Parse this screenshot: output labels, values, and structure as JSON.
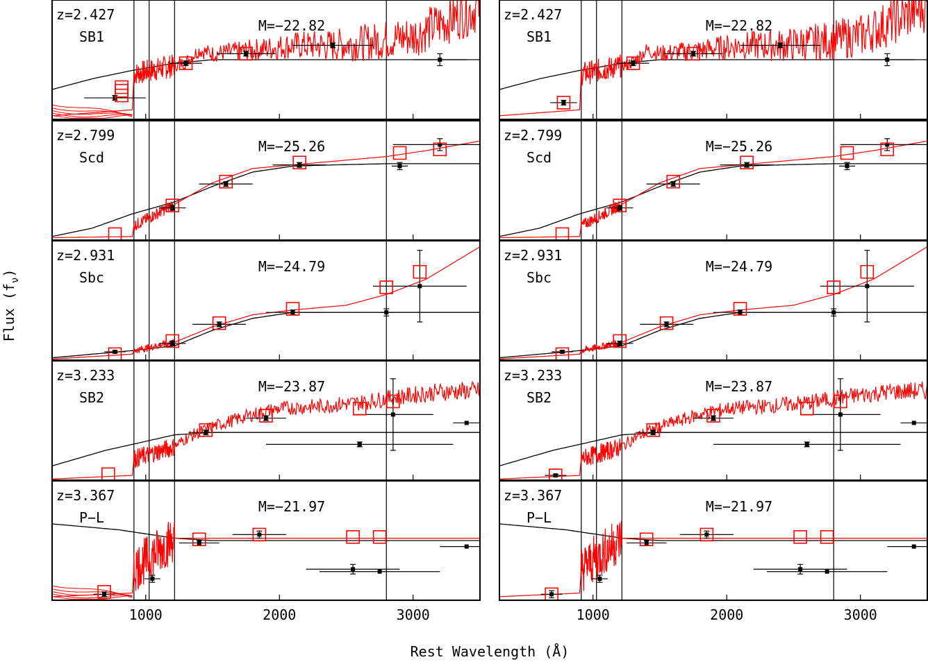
{
  "figure": {
    "xlabel": "Rest Wavelength (Å)",
    "ylabel": "Flux (f_ν)",
    "colors": {
      "model": "#ff0000",
      "continuum": "#000000",
      "axes": "#000000"
    }
  },
  "chart_data": {
    "type": "line",
    "xlim": [
      300,
      3500
    ],
    "xticks": [
      1000,
      2000,
      3000
    ],
    "xtick_labels": [
      "1000",
      "2000",
      "3000"
    ],
    "vlines": [
      912,
      1026,
      1216,
      2800
    ],
    "grid": false,
    "legend": "none",
    "columns": 2,
    "panels": [
      {
        "z": "z=2.427",
        "type": "SB1",
        "mag": "M=−22.82",
        "ylim": [
          0,
          1
        ],
        "continuum": [
          [
            300,
            0.25
          ],
          [
            600,
            0.34
          ],
          [
            900,
            0.41
          ],
          [
            1216,
            0.47
          ],
          [
            1500,
            0.5
          ]
        ],
        "cont_flat": 0.5,
        "model": [
          [
            300,
            0.03
          ],
          [
            900,
            0.08
          ],
          [
            912,
            0.38
          ],
          [
            1216,
            0.45
          ],
          [
            1300,
            0.48
          ],
          [
            1400,
            0.58
          ],
          [
            1500,
            0.55
          ],
          [
            1800,
            0.58
          ],
          [
            2100,
            0.62
          ],
          [
            2400,
            0.62
          ],
          [
            2700,
            0.65
          ],
          [
            3000,
            0.7
          ],
          [
            3200,
            0.8
          ],
          [
            3400,
            0.9
          ],
          [
            3500,
            0.95
          ]
        ],
        "noise": {
          "from": 1216,
          "to": 3500,
          "amp": 0.05,
          "amp_end": 0.22
        },
        "lyman_noise": 0.1,
        "phot": [
          {
            "x": 1300,
            "y": 0.47,
            "xe": 120,
            "ye": 0.02
          },
          {
            "x": 1750,
            "y": 0.55,
            "xe": 220,
            "ye": 0.02
          },
          {
            "x": 2400,
            "y": 0.62,
            "xe": 300,
            "ye": 0.02
          },
          {
            "x": 3200,
            "y": 0.5,
            "xe": 200,
            "ye": 0.05
          }
        ],
        "left_only": [
          {
            "x": 770,
            "y": 0.18,
            "xe": 230,
            "ye": 0.02
          }
        ],
        "right_only": [
          {
            "x": 780,
            "y": 0.14,
            "xe": 100,
            "ye": 0.02
          }
        ],
        "boxes": [
          [
            1300,
            0.47
          ],
          [
            1750,
            0.55
          ]
        ],
        "left_boxes": [
          [
            820,
            0.2
          ],
          [
            820,
            0.24
          ],
          [
            820,
            0.27
          ]
        ],
        "right_boxes": [
          [
            780,
            0.14
          ]
        ],
        "left_tracks": true
      },
      {
        "z": "z=2.799",
        "type": "Scd",
        "mag": "M=−25.26",
        "ylim": [
          0,
          1
        ],
        "continuum": [
          [
            300,
            0.03
          ],
          [
            600,
            0.1
          ],
          [
            900,
            0.22
          ],
          [
            1216,
            0.32
          ],
          [
            1500,
            0.45
          ],
          [
            1800,
            0.57
          ],
          [
            2100,
            0.62
          ],
          [
            2400,
            0.63
          ],
          [
            2800,
            0.64
          ],
          [
            3500,
            0.64
          ]
        ],
        "cont_flat": 0,
        "model": [
          [
            300,
            0.02
          ],
          [
            900,
            0.03
          ],
          [
            912,
            0.12
          ],
          [
            1216,
            0.3
          ],
          [
            1500,
            0.48
          ],
          [
            1800,
            0.6
          ],
          [
            2100,
            0.63
          ],
          [
            2400,
            0.66
          ],
          [
            2800,
            0.7
          ],
          [
            3100,
            0.75
          ],
          [
            3500,
            0.83
          ]
        ],
        "noise": {
          "from": 912,
          "to": 1216,
          "amp": 0.05,
          "amp_end": 0.05
        },
        "lyman_noise": 0,
        "phot": [
          {
            "x": 1200,
            "y": 0.27,
            "xe": 100,
            "ye": 0.02
          },
          {
            "x": 1600,
            "y": 0.47,
            "xe": 200,
            "ye": 0.02
          },
          {
            "x": 2150,
            "y": 0.63,
            "xe": 200,
            "ye": 0.02
          },
          {
            "x": 2900,
            "y": 0.62,
            "xe": 60,
            "ye": 0.03
          },
          {
            "x": 3200,
            "y": 0.8,
            "xe": 350,
            "ye": 0.05
          }
        ],
        "left_only": [],
        "right_only": [],
        "boxes": [
          [
            1200,
            0.29
          ],
          [
            1600,
            0.49
          ],
          [
            2150,
            0.65
          ],
          [
            2900,
            0.73
          ],
          [
            3200,
            0.76
          ],
          [
            770,
            0.05
          ]
        ],
        "left_boxes": [],
        "right_boxes": [],
        "left_tracks": false
      },
      {
        "z": "z=2.931",
        "type": "Sbc",
        "mag": "M=−24.79",
        "ylim": [
          0,
          1
        ],
        "continuum": [
          [
            300,
            0.02
          ],
          [
            700,
            0.06
          ],
          [
            900,
            0.08
          ],
          [
            1216,
            0.12
          ],
          [
            1500,
            0.25
          ],
          [
            1800,
            0.35
          ],
          [
            2100,
            0.4
          ],
          [
            2500,
            0.4
          ],
          [
            3500,
            0.4
          ]
        ],
        "cont_flat": 0,
        "model": [
          [
            300,
            0.01
          ],
          [
            900,
            0.05
          ],
          [
            912,
            0.08
          ],
          [
            1216,
            0.15
          ],
          [
            1500,
            0.28
          ],
          [
            1800,
            0.38
          ],
          [
            2100,
            0.42
          ],
          [
            2500,
            0.46
          ],
          [
            2800,
            0.55
          ],
          [
            3100,
            0.68
          ],
          [
            3500,
            0.95
          ]
        ],
        "noise": {
          "from": 912,
          "to": 1216,
          "amp": 0.03,
          "amp_end": 0.03
        },
        "lyman_noise": 0,
        "phot": [
          {
            "x": 770,
            "y": 0.07,
            "xe": 80,
            "ye": 0.01
          },
          {
            "x": 1200,
            "y": 0.14,
            "xe": 100,
            "ye": 0.02
          },
          {
            "x": 1550,
            "y": 0.3,
            "xe": 200,
            "ye": 0.02
          },
          {
            "x": 2100,
            "y": 0.4,
            "xe": 200,
            "ye": 0.02
          },
          {
            "x": 2800,
            "y": 0.4,
            "xe": 50,
            "ye": 0.03
          },
          {
            "x": 3050,
            "y": 0.62,
            "xe": 350,
            "ye": 0.3
          }
        ],
        "left_only": [],
        "right_only": [],
        "boxes": [
          [
            770,
            0.05
          ],
          [
            1200,
            0.16
          ],
          [
            1550,
            0.31
          ],
          [
            2100,
            0.43
          ],
          [
            2800,
            0.61
          ],
          [
            3050,
            0.74
          ]
        ],
        "left_boxes": [],
        "right_boxes": [],
        "left_tracks": false
      },
      {
        "z": "z=3.233",
        "type": "SB2",
        "mag": "M=−23.87",
        "ylim": [
          0,
          1
        ],
        "continuum": [
          [
            300,
            0.12
          ],
          [
            700,
            0.25
          ],
          [
            900,
            0.3
          ],
          [
            1216,
            0.38
          ],
          [
            1500,
            0.4
          ]
        ],
        "cont_flat": 0.4,
        "model": [
          [
            300,
            0.01
          ],
          [
            900,
            0.04
          ],
          [
            912,
            0.18
          ],
          [
            1216,
            0.28
          ],
          [
            1300,
            0.35
          ],
          [
            1500,
            0.45
          ],
          [
            1800,
            0.55
          ],
          [
            2000,
            0.6
          ],
          [
            2300,
            0.62
          ],
          [
            2600,
            0.65
          ],
          [
            2900,
            0.7
          ],
          [
            3200,
            0.74
          ],
          [
            3500,
            0.75
          ]
        ],
        "noise": {
          "from": 1216,
          "to": 3500,
          "amp": 0.05,
          "amp_end": 0.08
        },
        "lyman_noise": 0.08,
        "phot": [
          {
            "x": 1450,
            "y": 0.4,
            "xe": 130,
            "ye": 0.02
          },
          {
            "x": 1900,
            "y": 0.52,
            "xe": 150,
            "ye": 0.02
          },
          {
            "x": 2600,
            "y": 0.3,
            "xe": 700,
            "ye": 0.02
          },
          {
            "x": 2850,
            "y": 0.55,
            "xe": 300,
            "ye": 0.3
          },
          {
            "x": 3400,
            "y": 0.48,
            "xe": 100,
            "ye": 0.0
          }
        ],
        "left_only": [],
        "right_only": [
          {
            "x": 720,
            "y": 0.04,
            "xe": 80,
            "ye": 0.01
          }
        ],
        "boxes": [
          [
            1450,
            0.42
          ],
          [
            1900,
            0.54
          ],
          [
            2600,
            0.6
          ],
          [
            2850,
            0.66
          ]
        ],
        "left_boxes": [
          [
            720,
            0.05
          ]
        ],
        "right_boxes": [
          [
            720,
            0.04
          ]
        ],
        "left_tracks": false
      },
      {
        "z": "z=3.367",
        "type": "P−L",
        "mag": "M=−21.97",
        "ylim": [
          0,
          1
        ],
        "continuum": [
          [
            300,
            0.64
          ],
          [
            800,
            0.59
          ],
          [
            1216,
            0.52
          ],
          [
            1500,
            0.5
          ],
          [
            3500,
            0.5
          ]
        ],
        "cont_flat": 0,
        "model": [
          [
            300,
            0.03
          ],
          [
            900,
            0.06
          ],
          [
            912,
            0.26
          ],
          [
            1216,
            0.52
          ],
          [
            1300,
            0.52
          ],
          [
            3500,
            0.52
          ]
        ],
        "noise": {
          "from": 912,
          "to": 1216,
          "amp": 0.2,
          "amp_end": 0.2
        },
        "lyman_noise": 0,
        "phot": [
          {
            "x": 1050,
            "y": 0.18,
            "xe": 60,
            "ye": 0.03
          },
          {
            "x": 1400,
            "y": 0.48,
            "xe": 150,
            "ye": 0.02
          },
          {
            "x": 1850,
            "y": 0.55,
            "xe": 200,
            "ye": 0.03
          },
          {
            "x": 2550,
            "y": 0.26,
            "xe": 350,
            "ye": 0.04
          },
          {
            "x": 2750,
            "y": 0.24,
            "xe": 450,
            "ye": 0.0
          },
          {
            "x": 3400,
            "y": 0.45,
            "xe": 200,
            "ye": 0.0
          }
        ],
        "left_only": [
          {
            "x": 690,
            "y": 0.05,
            "xe": 80,
            "ye": 0.02
          }
        ],
        "right_only": [
          {
            "x": 690,
            "y": 0.05,
            "xe": 80,
            "ye": 0.03
          }
        ],
        "boxes": [
          [
            1400,
            0.51
          ],
          [
            1850,
            0.55
          ],
          [
            2550,
            0.53
          ],
          [
            2750,
            0.53
          ]
        ],
        "left_boxes": [
          [
            690,
            0.07
          ]
        ],
        "right_boxes": [
          [
            690,
            0.05
          ]
        ],
        "left_tracks": true
      }
    ]
  }
}
